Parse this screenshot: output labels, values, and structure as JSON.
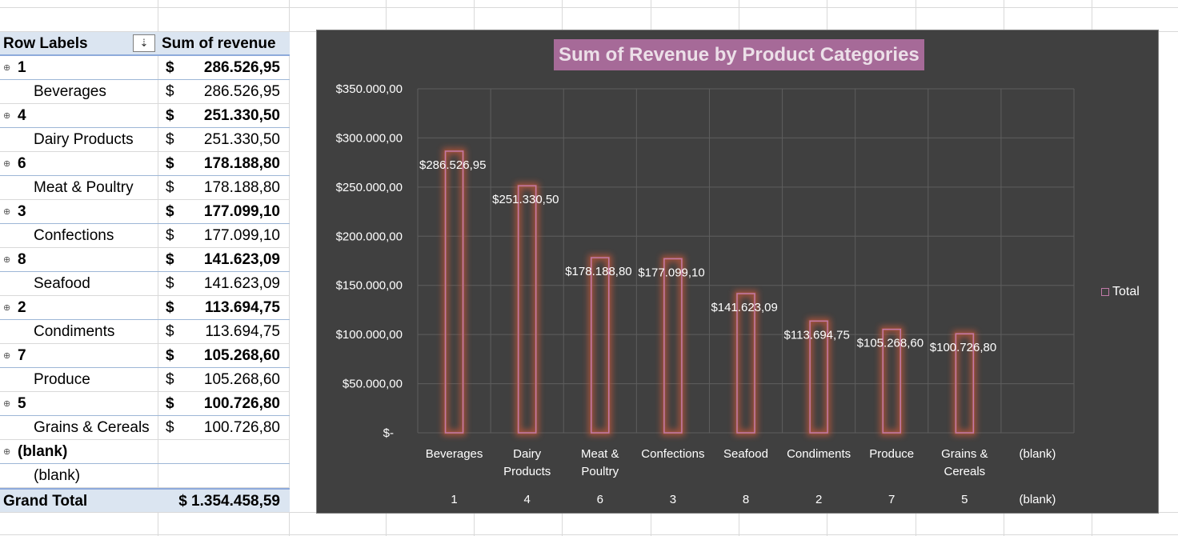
{
  "pivot": {
    "header": {
      "row_labels": "Row Labels",
      "sort_icon": "⇣",
      "value_header": "Sum of revenue"
    },
    "rows": [
      {
        "kind": "group",
        "label": "1",
        "dollar": "$",
        "amount": "286.526,95"
      },
      {
        "kind": "child",
        "label": "Beverages",
        "dollar": "$",
        "amount": "286.526,95"
      },
      {
        "kind": "group",
        "label": "4",
        "dollar": "$",
        "amount": "251.330,50"
      },
      {
        "kind": "child",
        "label": "Dairy Products",
        "dollar": "$",
        "amount": "251.330,50"
      },
      {
        "kind": "group",
        "label": "6",
        "dollar": "$",
        "amount": "178.188,80"
      },
      {
        "kind": "child",
        "label": "Meat & Poultry",
        "dollar": "$",
        "amount": "178.188,80"
      },
      {
        "kind": "group",
        "label": "3",
        "dollar": "$",
        "amount": "177.099,10"
      },
      {
        "kind": "child",
        "label": "Confections",
        "dollar": "$",
        "amount": "177.099,10"
      },
      {
        "kind": "group",
        "label": "8",
        "dollar": "$",
        "amount": "141.623,09"
      },
      {
        "kind": "child",
        "label": "Seafood",
        "dollar": "$",
        "amount": "141.623,09"
      },
      {
        "kind": "group",
        "label": "2",
        "dollar": "$",
        "amount": "113.694,75"
      },
      {
        "kind": "child",
        "label": "Condiments",
        "dollar": "$",
        "amount": "113.694,75"
      },
      {
        "kind": "group",
        "label": "7",
        "dollar": "$",
        "amount": "105.268,60"
      },
      {
        "kind": "child",
        "label": "Produce",
        "dollar": "$",
        "amount": "105.268,60"
      },
      {
        "kind": "group",
        "label": "5",
        "dollar": "$",
        "amount": "100.726,80"
      },
      {
        "kind": "child",
        "label": "Grains & Cereals",
        "dollar": "$",
        "amount": "100.726,80"
      },
      {
        "kind": "group",
        "label": "(blank)",
        "dollar": "",
        "amount": ""
      },
      {
        "kind": "child",
        "label": "(blank)",
        "dollar": "",
        "amount": ""
      }
    ],
    "grand_total": {
      "label": "Grand Total",
      "amount": "$ 1.354.458,59"
    },
    "expander_glyph": "⊕"
  },
  "chart_data": {
    "type": "bar",
    "title": "Sum of Revenue by Product Categories",
    "categories": [
      {
        "name": [
          "Beverages"
        ],
        "group": "1"
      },
      {
        "name": [
          "Dairy",
          "Products"
        ],
        "group": "4"
      },
      {
        "name": [
          "Meat &",
          "Poultry"
        ],
        "group": "6"
      },
      {
        "name": [
          "Confections"
        ],
        "group": "3"
      },
      {
        "name": [
          "Seafood"
        ],
        "group": "8"
      },
      {
        "name": [
          "Condiments"
        ],
        "group": "2"
      },
      {
        "name": [
          "Produce"
        ],
        "group": "7"
      },
      {
        "name": [
          "Grains &",
          "Cereals"
        ],
        "group": "5"
      },
      {
        "name": [
          "(blank)"
        ],
        "group": "(blank)"
      }
    ],
    "series": [
      {
        "name": "Total",
        "values": [
          286526.95,
          251330.5,
          178188.8,
          177099.1,
          141623.09,
          113694.75,
          105268.6,
          100726.8,
          null
        ],
        "data_labels": [
          "$286.526,95",
          "$251.330,50",
          "$178.188,80",
          "$177.099,10",
          "$141.623,09",
          "$113.694,75",
          "$105.268,60",
          "$100.726,80",
          ""
        ]
      }
    ],
    "ylim": [
      0,
      350000
    ],
    "y_ticks": [
      {
        "value": 0,
        "label": "$-"
      },
      {
        "value": 50000,
        "label": "$50.000,00"
      },
      {
        "value": 100000,
        "label": "$100.000,00"
      },
      {
        "value": 150000,
        "label": "$150.000,00"
      },
      {
        "value": 200000,
        "label": "$200.000,00"
      },
      {
        "value": 250000,
        "label": "$250.000,00"
      },
      {
        "value": 300000,
        "label": "$300.000,00"
      },
      {
        "value": 350000,
        "label": "$350.000,00"
      }
    ],
    "grid": true,
    "legend": {
      "position": "right",
      "label": "Total"
    },
    "colors": {
      "background": "#404040",
      "grid": "#5e5e5e",
      "bar_outline": "#c07aa8",
      "bar_glow": "#b5553a",
      "text": "#ffffff"
    }
  }
}
